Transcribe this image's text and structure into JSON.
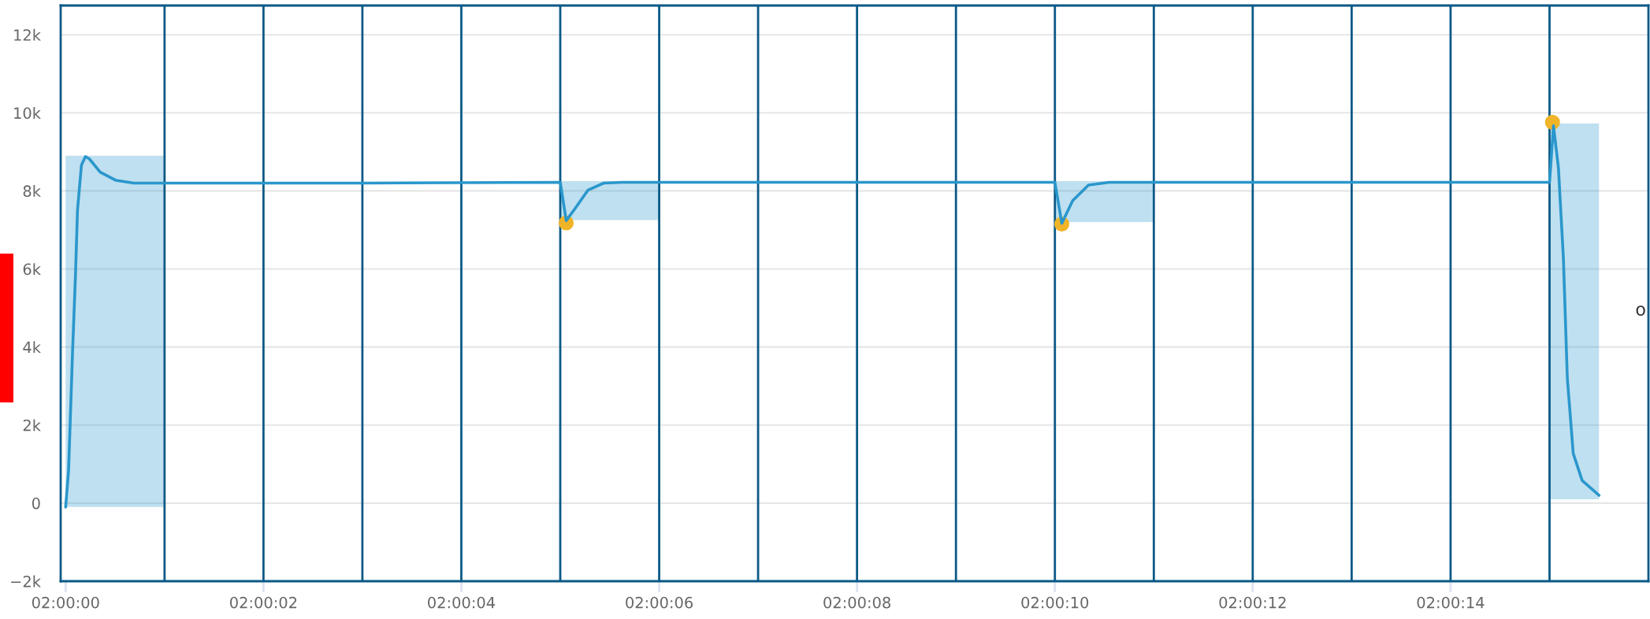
{
  "chart_data": {
    "type": "line",
    "xlim": [
      1.9999861,
      2.0044444
    ],
    "xticks": [
      {
        "value": 2,
        "label": "02:00:00"
      },
      {
        "value": 2.0005556,
        "label": "02:00:02"
      },
      {
        "value": 2.0011111,
        "label": "02:00:04"
      },
      {
        "value": 2.0016667,
        "label": "02:00:06"
      },
      {
        "value": 2.0022222,
        "label": "02:00:08"
      },
      {
        "value": 2.0027778,
        "label": "02:00:10"
      },
      {
        "value": 2.0033333,
        "label": "02:00:12"
      },
      {
        "value": 2.0038889,
        "label": "02:00:14"
      }
    ],
    "ylim": [
      -2000,
      12750
    ],
    "yticks": [
      {
        "value": -2000,
        "label": "−2k"
      },
      {
        "value": 0,
        "label": "0"
      },
      {
        "value": 2000,
        "label": "2k"
      },
      {
        "value": 4000,
        "label": "4k"
      },
      {
        "value": 6000,
        "label": "6k"
      },
      {
        "value": 8000,
        "label": "8k"
      },
      {
        "value": 10000,
        "label": "10k"
      },
      {
        "value": 12000,
        "label": "12k"
      }
    ],
    "grid": "y",
    "series": [
      {
        "color": "#2a97cc",
        "x": [
          2,
          2.0000083,
          2.0000194,
          2.0000278,
          2.0000333,
          2.0000444,
          2.0000556,
          2.0000667,
          2.0000972,
          2.0001417,
          2.0001917,
          2.0002778,
          2.0008333,
          2.0013889,
          2.0014056,
          2.0014306,
          2.0014667,
          2.0015111,
          2.0015639,
          2.0016667,
          2.0022222,
          2.0027778,
          2.0027972,
          2.0028278,
          2.0028722,
          2.0029306,
          2.0030556,
          2.0036111,
          2.0041667,
          2.0041778,
          2.0041917,
          2.0042056,
          2.0042167,
          2.0042333,
          2.0042583,
          2.0043056
        ],
        "values": [
          -100,
          840,
          3860,
          5870,
          7500,
          8660,
          8880,
          8820,
          8480,
          8270,
          8200,
          8200,
          8200,
          8220,
          7240,
          7550,
          8020,
          8200,
          8220,
          8220,
          8220,
          8220,
          7170,
          7750,
          8150,
          8220,
          8220,
          8220,
          8220,
          9670,
          8590,
          6280,
          3200,
          1270,
          580,
          200
        ],
        "lower": [
          -100,
          -100,
          -100,
          -100,
          -100,
          -100,
          -100,
          -100,
          -100,
          -100,
          -100,
          -100,
          null,
          7250,
          7250,
          7250,
          7250,
          7250,
          7250,
          7250,
          null,
          7200,
          7200,
          7200,
          7200,
          7200,
          7200,
          null,
          100,
          100,
          100,
          100,
          100,
          100,
          100,
          100
        ],
        "upper": [
          8900,
          8900,
          8900,
          8900,
          8900,
          8900,
          8900,
          8900,
          8900,
          8900,
          8900,
          8900,
          null,
          8250,
          8250,
          8250,
          8250,
          8250,
          8250,
          8250,
          null,
          8250,
          8250,
          8250,
          8250,
          8250,
          8250,
          null,
          9730,
          9730,
          9730,
          9730,
          9730,
          9730,
          9730,
          9730
        ]
      },
      {
        "type": "scatter",
        "color": "#f0b429",
        "marker": "circle",
        "x": [
          2.0014056,
          2.0027972,
          2.004175
        ],
        "values": [
          7180,
          7150,
          9760
        ]
      }
    ],
    "ref_lines": [
      {
        "axis": "x",
        "value": 2.0002778,
        "color": "#0b5986"
      },
      {
        "axis": "x",
        "value": 2.0005556,
        "color": "#0b5986"
      },
      {
        "axis": "x",
        "value": 2.0008333,
        "color": "#0b5986"
      },
      {
        "axis": "x",
        "value": 2.0011111,
        "color": "#0b5986"
      },
      {
        "axis": "x",
        "value": 2.0013889,
        "color": "#0b5986"
      },
      {
        "axis": "x",
        "value": 2.0016667,
        "color": "#0b5986"
      },
      {
        "axis": "x",
        "value": 2.0019444,
        "color": "#0b5986"
      },
      {
        "axis": "x",
        "value": 2.0022222,
        "color": "#0b5986"
      },
      {
        "axis": "x",
        "value": 2.0025,
        "color": "#0b5986"
      },
      {
        "axis": "x",
        "value": 2.0027778,
        "color": "#0b5986"
      },
      {
        "axis": "x",
        "value": 2.0030556,
        "color": "#0b5986"
      },
      {
        "axis": "x",
        "value": 2.0033333,
        "color": "#0b5986"
      },
      {
        "axis": "x",
        "value": 2.0036111,
        "color": "#0b5986"
      },
      {
        "axis": "x",
        "value": 2.0038889,
        "color": "#0b5986"
      },
      {
        "axis": "x",
        "value": 2.0041667,
        "color": "#0b5986"
      }
    ],
    "annotations": [
      "o"
    ]
  }
}
